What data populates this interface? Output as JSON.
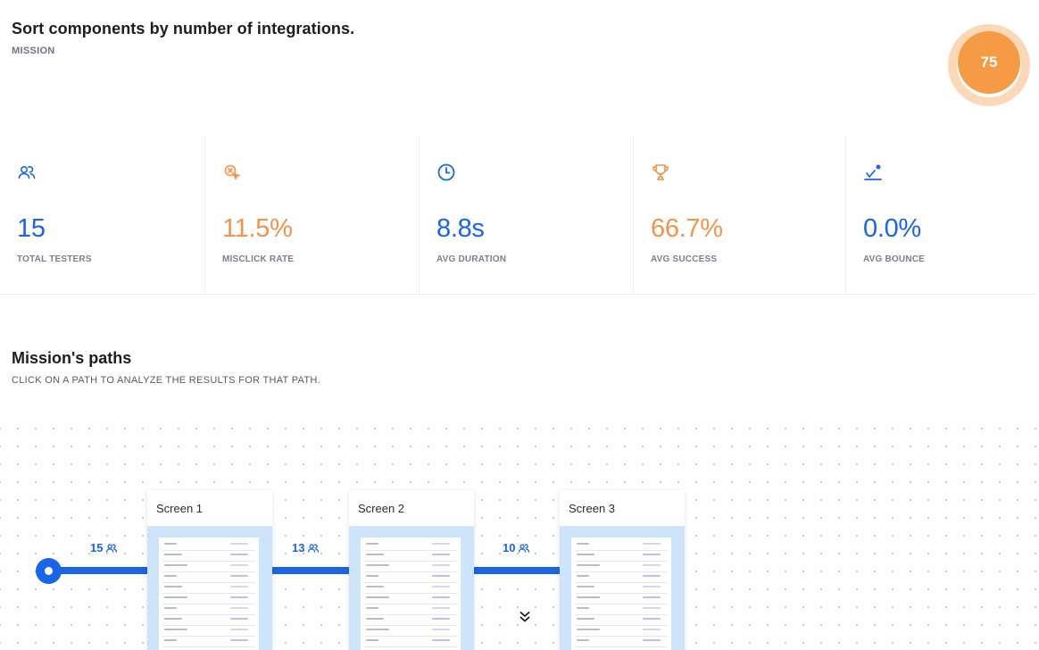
{
  "mission": {
    "title": "Sort components by number of integrations.",
    "label": "MISSION",
    "score": "75"
  },
  "stats": [
    {
      "icon": "users-icon",
      "value": "15",
      "label": "TOTAL TESTERS",
      "color": "#1a64e6"
    },
    {
      "icon": "misclick-icon",
      "value": "11.5%",
      "label": "MISCLICK RATE",
      "color": "#f2934b"
    },
    {
      "icon": "clock-icon",
      "value": "8.8s",
      "label": "AVG DURATION",
      "color": "#1a64e6"
    },
    {
      "icon": "trophy-icon",
      "value": "66.7%",
      "label": "AVG SUCCESS",
      "color": "#f2934b"
    },
    {
      "icon": "bounce-icon",
      "value": "0.0%",
      "label": "AVG BOUNCE",
      "color": "#1a64e6"
    }
  ],
  "paths": {
    "title": "Mission's paths",
    "subtitle": "CLICK ON A PATH TO ANALYZE THE RESULTS FOR THAT PATH.",
    "edges": [
      {
        "count": "15"
      },
      {
        "count": "13"
      },
      {
        "count": "10"
      }
    ],
    "screens": [
      {
        "title": "Screen 1"
      },
      {
        "title": "Screen 2"
      },
      {
        "title": "Screen 3"
      }
    ]
  },
  "colors": {
    "accent_blue": "#1a64e6",
    "accent_orange": "#f2934b",
    "score_ring": "#fbd9b8",
    "score_core": "#f59a45"
  }
}
